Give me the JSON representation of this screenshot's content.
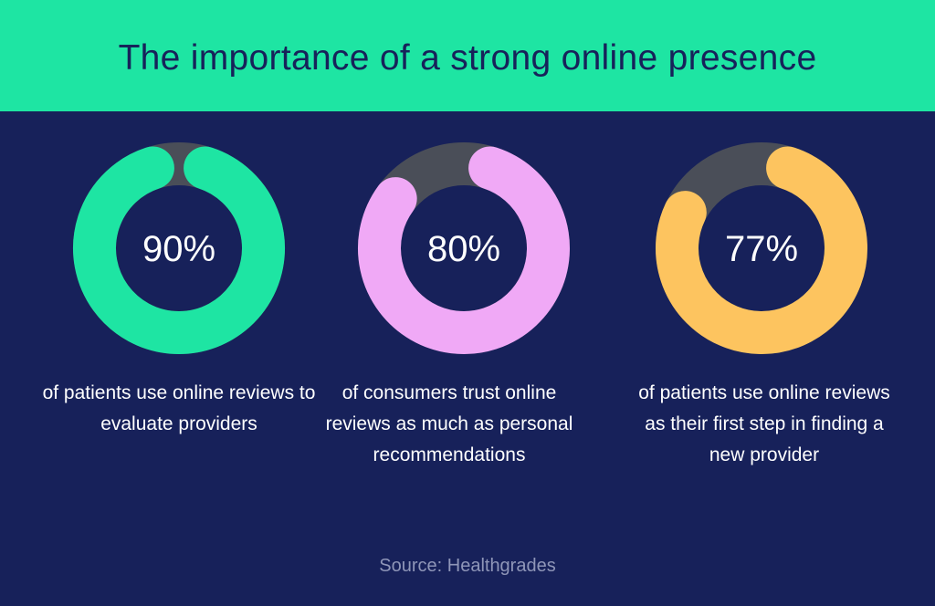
{
  "header": {
    "title": "The importance of a strong online presence"
  },
  "chart_data": {
    "type": "donut",
    "title": "The importance of a strong online presence",
    "track_color": "#4a4e58",
    "items": [
      {
        "label": "90%",
        "value": 90,
        "color": "#1ee5a3",
        "caption": "of patients use online reviews to evaluate providers"
      },
      {
        "label": "80%",
        "value": 80,
        "color": "#f0a9f6",
        "caption": "of consumers trust online reviews as much as personal recommendations"
      },
      {
        "label": "77%",
        "value": 77,
        "color": "#fdc45f",
        "caption": "of patients use online reviews as their first step in finding a new provider"
      }
    ]
  },
  "footer": {
    "source": "Source: Healthgrades"
  }
}
